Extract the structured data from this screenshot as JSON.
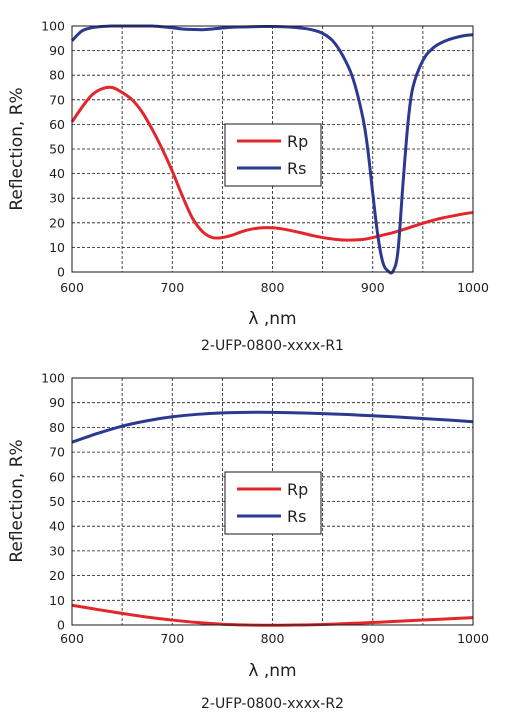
{
  "chart_data": [
    {
      "type": "line",
      "title": "",
      "xlabel": "λ ,nm",
      "ylabel": "Reflection, R%",
      "caption": "2-UFP-0800-xxxx-R1",
      "xlim": [
        600,
        1000
      ],
      "ylim": [
        0,
        100
      ],
      "xticks": [
        600,
        700,
        800,
        900,
        1000
      ],
      "yticks": [
        0,
        10,
        20,
        30,
        40,
        50,
        60,
        70,
        80,
        90,
        100
      ],
      "grid": true,
      "legend_position": "center",
      "series": [
        {
          "name": "Rp",
          "color": "#e3262b",
          "x": [
            600,
            610,
            620,
            630,
            640,
            650,
            660,
            670,
            680,
            690,
            700,
            710,
            720,
            730,
            740,
            750,
            760,
            770,
            780,
            790,
            800,
            810,
            820,
            830,
            840,
            850,
            860,
            870,
            880,
            890,
            900,
            910,
            920,
            930,
            940,
            950,
            960,
            970,
            980,
            990,
            1000
          ],
          "y": [
            61,
            67,
            72,
            74.5,
            75,
            73,
            70,
            65,
            58,
            50,
            41,
            31,
            22,
            16.5,
            14,
            14,
            15,
            16.5,
            17.5,
            18,
            18,
            17.5,
            16.7,
            15.8,
            14.8,
            14,
            13.4,
            13,
            13,
            13.2,
            14,
            15,
            16,
            17.2,
            18.5,
            19.8,
            21,
            22,
            22.8,
            23.6,
            24.2
          ]
        },
        {
          "name": "Rs",
          "color": "#2b3990",
          "x": [
            600,
            610,
            620,
            630,
            640,
            650,
            660,
            670,
            680,
            690,
            700,
            710,
            720,
            730,
            740,
            750,
            760,
            770,
            780,
            790,
            800,
            810,
            820,
            830,
            840,
            850,
            860,
            870,
            880,
            890,
            895,
            900,
            905,
            910,
            915,
            920,
            925,
            930,
            935,
            940,
            950,
            960,
            970,
            980,
            990,
            1000
          ],
          "y": [
            94,
            98,
            99.3,
            99.8,
            100,
            100,
            100,
            100,
            100,
            99.7,
            99.3,
            98.8,
            98.6,
            98.5,
            98.8,
            99.2,
            99.5,
            99.6,
            99.7,
            99.8,
            99.8,
            99.7,
            99.5,
            99.1,
            98.4,
            97,
            94,
            88,
            79,
            63,
            50,
            32,
            15,
            4,
            0.5,
            0.2,
            8,
            35,
            60,
            75,
            86,
            91,
            93.5,
            95,
            96,
            96.5
          ]
        }
      ]
    },
    {
      "type": "line",
      "title": "",
      "xlabel": "λ ,nm",
      "ylabel": "Reflection, R%",
      "caption": "2-UFP-0800-xxxx-R2",
      "xlim": [
        600,
        1000
      ],
      "ylim": [
        0,
        100
      ],
      "xticks": [
        600,
        700,
        800,
        900,
        1000
      ],
      "yticks": [
        0,
        10,
        20,
        30,
        40,
        50,
        60,
        70,
        80,
        90,
        100
      ],
      "grid": true,
      "legend_position": "center",
      "series": [
        {
          "name": "Rp",
          "color": "#e3262b",
          "x": [
            600,
            625,
            650,
            675,
            700,
            725,
            750,
            775,
            800,
            825,
            850,
            875,
            900,
            925,
            950,
            975,
            1000
          ],
          "y": [
            8,
            6.3,
            4.7,
            3.2,
            2,
            1,
            0.3,
            0,
            -0.1,
            0,
            0.2,
            0.6,
            1,
            1.5,
            2,
            2.5,
            3
          ]
        },
        {
          "name": "Rs",
          "color": "#2b3990",
          "x": [
            600,
            625,
            650,
            675,
            700,
            725,
            750,
            775,
            800,
            825,
            850,
            875,
            900,
            925,
            950,
            975,
            1000
          ],
          "y": [
            74,
            77.5,
            80.5,
            82.7,
            84.3,
            85.3,
            85.9,
            86.1,
            86.1,
            85.9,
            85.6,
            85.2,
            84.7,
            84.2,
            83.6,
            83,
            82.3
          ]
        }
      ]
    }
  ]
}
